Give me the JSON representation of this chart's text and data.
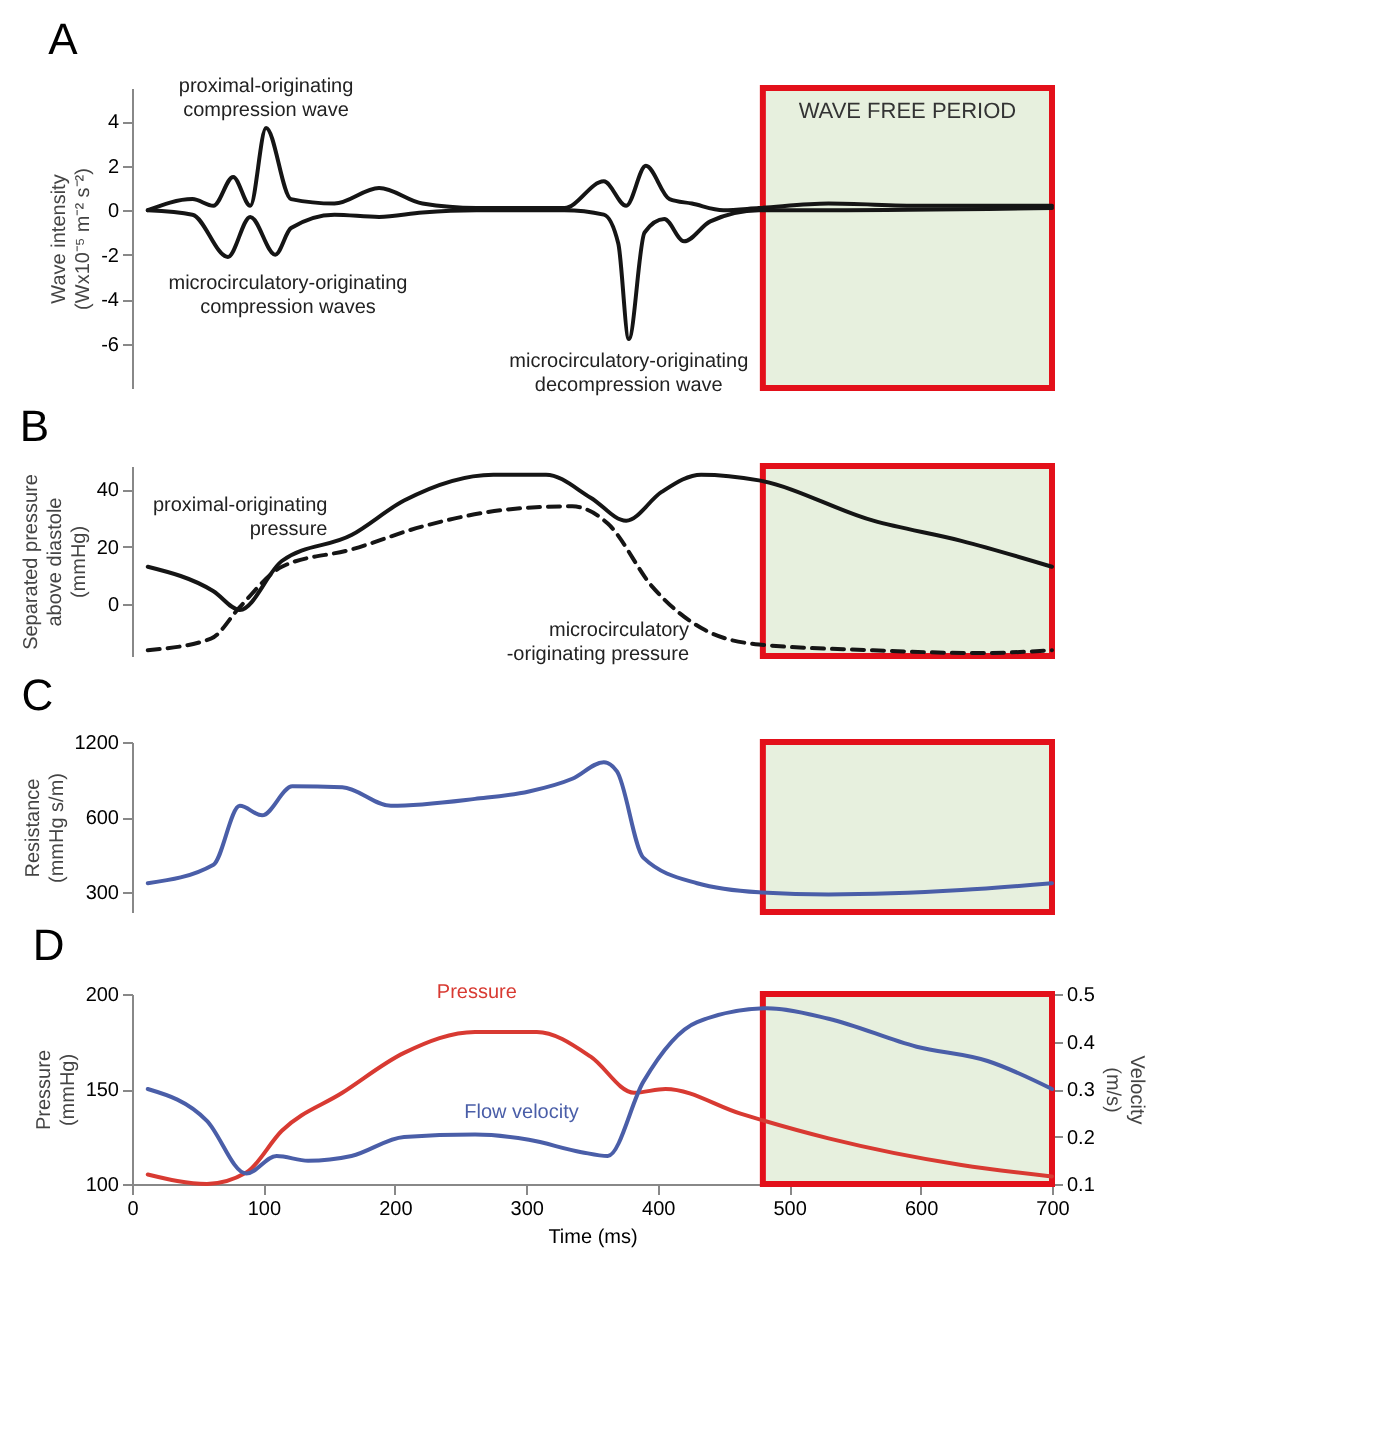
{
  "chart_data": [
    {
      "type": "line",
      "title": "A",
      "ylabel": "Wave intensity\n(Wx10⁻⁵ m⁻² s⁻²)",
      "xlim": [
        0,
        700
      ],
      "ylim": [
        -8,
        5.5
      ],
      "yticks": [
        -6,
        -4,
        -2,
        0,
        2,
        4
      ],
      "tick_labels": "y",
      "series": [
        {
          "color": "#151515",
          "x": [
            12,
            46,
            62,
            77,
            90,
            102,
            121,
            154,
            188,
            221,
            262,
            329,
            359,
            376,
            391,
            409,
            426,
            450,
            477,
            530,
            600,
            700
          ],
          "values": [
            0,
            0.5,
            0.2,
            1.5,
            0.2,
            3.7,
            0.5,
            0.3,
            1.0,
            0.3,
            0.1,
            0.1,
            1.3,
            0.2,
            2.0,
            0.5,
            0.3,
            0,
            0.1,
            0.3,
            0.2,
            0.2
          ]
        },
        {
          "color": "#151515",
          "x": [
            12,
            46,
            73,
            90,
            109,
            121,
            154,
            188,
            221,
            262,
            329,
            359,
            370,
            378,
            390,
            405,
            420,
            440,
            477,
            530,
            700
          ],
          "values": [
            0,
            -0.2,
            -2.1,
            -0.3,
            -2.0,
            -0.8,
            -0.2,
            -0.3,
            -0.1,
            0,
            0,
            -0.2,
            -1.5,
            -5.8,
            -1.0,
            -0.4,
            -1.4,
            -0.5,
            0,
            0,
            0.1
          ]
        }
      ],
      "annotations": [
        {
          "text": "proximal-originating\ncompression wave",
          "x": 102,
          "y": 3.7
        },
        {
          "text": "microcirculatory-originating\ncompression waves",
          "x": 73,
          "y": -2.1
        },
        {
          "text": "microcirculatory-originating\ndecompression wave",
          "x": 378,
          "y": -5.8
        }
      ],
      "bands": [
        {
          "axis": "x",
          "from": 480,
          "to": 700,
          "label": "WAVE FREE PERIOD",
          "color": "#e7f0de"
        }
      ]
    },
    {
      "type": "line",
      "title": "B",
      "ylabel": "Separated pressure\nabove diastole\n(mmHg)",
      "xlim": [
        0,
        700
      ],
      "ylim": [
        -18,
        48
      ],
      "yticks": [
        0,
        20,
        40
      ],
      "tick_labels": "y",
      "series": [
        {
          "color": "#151515",
          "line_style": "solid",
          "x": [
            12,
            62,
            82,
            114,
            167,
            207,
            275,
            315,
            349,
            376,
            403,
            433,
            477,
            564,
            631,
            700
          ],
          "values": [
            13,
            4.5,
            -2,
            15,
            24,
            36,
            45,
            45,
            37,
            29,
            39,
            45,
            43,
            29,
            22,
            13
          ]
        },
        {
          "color": "#151515",
          "line_style": "dashed",
          "x": [
            12,
            60,
            82,
            114,
            167,
            221,
            288,
            335,
            362,
            396,
            436,
            477,
            564,
            644,
            700
          ],
          "values": [
            -16,
            -12,
            -1,
            13,
            19,
            27,
            33,
            34,
            28,
            6,
            -9,
            -14,
            -16,
            -17,
            -16
          ]
        }
      ],
      "annotations": [
        {
          "text": "proximal-originating\npressure",
          "x": 167,
          "y": 24
        },
        {
          "text": "microcirculatory\n-originating pressure",
          "x": 436,
          "y": -9
        }
      ],
      "bands": [
        {
          "axis": "x",
          "from": 480,
          "to": 700,
          "color": "#e7f0de"
        }
      ]
    },
    {
      "type": "line",
      "title": "C",
      "ylabel": "Resistance\n(mmHg s/m)",
      "xlim": [
        0,
        700
      ],
      "ylim": [
        250,
        1200
      ],
      "yticks": [
        300,
        600,
        1200
      ],
      "log": "y",
      "tick_labels": "y",
      "series": [
        {
          "color": "#4a5ea8",
          "x": [
            12,
            62,
            82,
            99,
            122,
            160,
            197,
            261,
            302,
            335,
            359,
            369,
            389,
            430,
            477,
            530,
            631,
            700
          ],
          "values": [
            326,
            387,
            666,
            610,
            797,
            790,
            666,
            710,
            760,
            855,
            996,
            915,
            413,
            326,
            300,
            294,
            306,
            326
          ]
        }
      ],
      "bands": [
        {
          "axis": "x",
          "from": 480,
          "to": 700,
          "color": "#e7f0de"
        }
      ]
    },
    {
      "type": "line",
      "title": "D",
      "xlabel": "Time (ms)",
      "ylabel": "Pressure\n(mmHg)",
      "y2label": "Velocity\n(m/s)",
      "xlim": [
        0,
        700
      ],
      "xticks": [
        0,
        100,
        200,
        300,
        400,
        500,
        600,
        700
      ],
      "ylim": [
        100,
        200
      ],
      "yticks": [
        100,
        150,
        200
      ],
      "y2lim": [
        0.1,
        0.5
      ],
      "y2ticks": [
        0.1,
        0.2,
        0.3,
        0.4,
        0.5
      ],
      "series": [
        {
          "name": "Pressure",
          "color": "#d83a32",
          "x": [
            12,
            57,
            87,
            114,
            160,
            207,
            261,
            308,
            349,
            382,
            406,
            463,
            530,
            631,
            700
          ],
          "values": [
            105,
            100,
            106,
            128,
            148,
            169,
            180,
            180,
            167,
            148,
            150,
            137,
            124,
            110,
            104
          ]
        },
        {
          "name": "Flow velocity",
          "color": "#4a5ea8",
          "axis": "y2",
          "x": [
            12,
            57,
            87,
            110,
            134,
            167,
            207,
            261,
            302,
            342,
            362,
            389,
            430,
            483,
            530,
            597,
            651,
            700
          ],
          "values": [
            0.3,
            0.233,
            0.122,
            0.159,
            0.149,
            0.159,
            0.199,
            0.204,
            0.193,
            0.167,
            0.159,
            0.315,
            0.441,
            0.47,
            0.448,
            0.389,
            0.359,
            0.3
          ]
        }
      ],
      "bands": [
        {
          "axis": "x",
          "from": 480,
          "to": 700,
          "color": "#e7f0de"
        }
      ]
    }
  ]
}
